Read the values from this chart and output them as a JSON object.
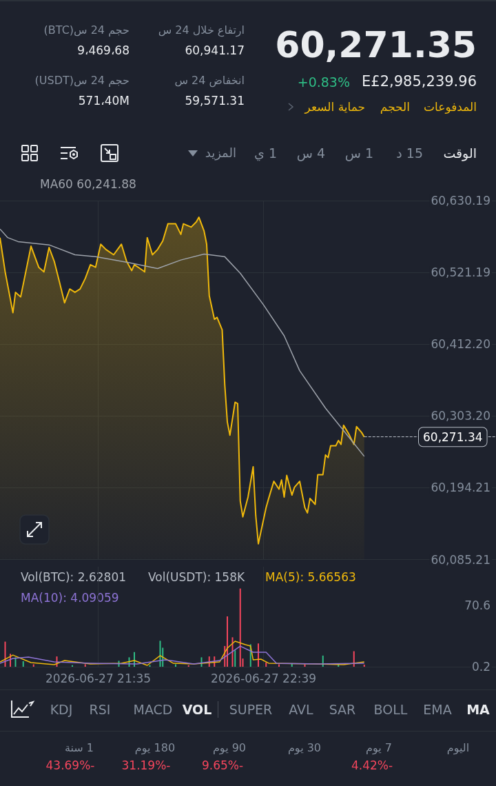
{
  "chart_data": [
    {
      "type": "other",
      "annotations": [
        "60,271.35",
        "E£2,985,239.96",
        "+0.83%",
        "المدفوعات",
        "الحجم",
        "حماية السعر",
        "ارتفاع خلال 24 س",
        "60,941.17",
        "انخفاض 24 س",
        "59,571.31",
        "حجم 24 س(BTC)",
        "9،469،68",
        "حجم 24 س(USDT)",
        "571،40M",
        "الوقت",
        "15 د",
        "1 س",
        "4 س",
        "1 ي",
        "المزيد"
      ]
    },
    {
      "type": "area",
      "xlim": [
        "2026-06-27T20:57",
        "2026-06-28T00:09"
      ],
      "xticks": [
        {
          "value": "2026-06-27T21:35",
          "label": null
        },
        {
          "value": "2026-06-27T22:39",
          "label": null
        }
      ],
      "ylim": [
        60085.21,
        60630.19
      ],
      "yticks": [
        {
          "value": 60085.21,
          "label": "60,085.21"
        },
        {
          "value": 60194.21,
          "label": "60,194.21"
        },
        {
          "value": 60303.2,
          "label": "60,303.20"
        },
        {
          "value": 60412.2,
          "label": "60,412.20"
        },
        {
          "value": 60521.19,
          "label": "60,521.19"
        },
        {
          "value": 60630.19,
          "label": "60,630.19"
        }
      ],
      "tick_labels": "y",
      "grid": true,
      "ref_lines": [
        {
          "axis": "y",
          "value": 60271.34,
          "label": "60,271.34",
          "line_style": "dashed",
          "color": "#b7bdc6"
        }
      ],
      "series": [
        {
          "type": "area",
          "color": "#f0b90b",
          "x": [
            "2026-06-27T20:57",
            "2026-06-27T20:59",
            "2026-06-27T21:02",
            "2026-06-27T21:03",
            "2026-06-27T21:05",
            "2026-06-27T21:09",
            "2026-06-27T21:12",
            "2026-06-27T21:14",
            "2026-06-27T21:16",
            "2026-06-27T21:18",
            "2026-06-27T21:20",
            "2026-06-27T21:22",
            "2026-06-27T21:24",
            "2026-06-27T21:26",
            "2026-06-27T21:28",
            "2026-06-27T21:30",
            "2026-06-27T21:32",
            "2026-06-27T21:34",
            "2026-06-27T21:36",
            "2026-06-27T21:38",
            "2026-06-27T21:41",
            "2026-06-27T21:44",
            "2026-06-27T21:46",
            "2026-06-27T21:48",
            "2026-06-27T21:49",
            "2026-06-27T21:52",
            "2026-06-27T21:53",
            "2026-06-27T21:54",
            "2026-06-27T21:56",
            "2026-06-27T21:58",
            "2026-06-27T22:00",
            "2026-06-27T22:02",
            "2026-06-27T22:05",
            "2026-06-27T22:07",
            "2026-06-27T22:08",
            "2026-06-27T22:11",
            "2026-06-27T22:13",
            "2026-06-27T22:14",
            "2026-06-27T22:16",
            "2026-06-27T22:17",
            "2026-06-27T22:18",
            "2026-06-27T22:20",
            "2026-06-27T22:21",
            "2026-06-27T22:23",
            "2026-06-27T22:24",
            "2026-06-27T22:25",
            "2026-06-27T22:26",
            "2026-06-27T22:28",
            "2026-06-27T22:29",
            "2026-06-27T22:30",
            "2026-06-27T22:31",
            "2026-06-27T22:33",
            "2026-06-27T22:35",
            "2026-06-27T22:36",
            "2026-06-27T22:37",
            "2026-06-27T22:40",
            "2026-06-27T22:41",
            "2026-06-27T22:43",
            "2026-06-27T22:45",
            "2026-06-27T22:46",
            "2026-06-27T22:47",
            "2026-06-27T22:48",
            "2026-06-27T22:50",
            "2026-06-27T22:51",
            "2026-06-27T22:53",
            "2026-06-27T22:55",
            "2026-06-27T22:56",
            "2026-06-27T22:57",
            "2026-06-27T22:59",
            "2026-06-27T23:00",
            "2026-06-27T23:02",
            "2026-06-27T23:03",
            "2026-06-27T23:04",
            "2026-06-27T23:05",
            "2026-06-27T23:07",
            "2026-06-27T23:08",
            "2026-06-27T23:09",
            "2026-06-27T23:10",
            "2026-06-27T23:12",
            "2026-06-27T23:13",
            "2026-06-27T23:14",
            "2026-06-27T23:15",
            "2026-06-27T23:17",
            "2026-06-27T23:18"
          ],
          "values": [
            60574,
            60522,
            60460,
            60491,
            60484,
            60561,
            60529,
            60522,
            60559,
            60538,
            60507,
            60475,
            60496,
            60491,
            60496,
            60512,
            60533,
            60529,
            60564,
            60556,
            60548,
            60564,
            60538,
            60524,
            60533,
            60525,
            60522,
            60574,
            60548,
            60556,
            60569,
            60595,
            60595,
            60579,
            60595,
            60590,
            60598,
            60605,
            60584,
            60564,
            60486,
            60450,
            60453,
            60434,
            60351,
            60294,
            60274,
            60324,
            60322,
            60174,
            60150,
            60180,
            60226,
            60152,
            60109,
            60164,
            60178,
            60204,
            60192,
            60206,
            60180,
            60213,
            60183,
            60195,
            60204,
            60164,
            60156,
            60178,
            60169,
            60214,
            60214,
            60244,
            60240,
            60258,
            60258,
            60266,
            60260,
            60289,
            60276,
            60268,
            60260,
            60287,
            60278,
            60271.34
          ]
        },
        {
          "type": "line",
          "name": "MA60 60,241.88",
          "color": "#9ea3ab",
          "x": [
            "2026-06-27T20:57",
            "2026-06-27T21:00",
            "2026-06-27T21:04",
            "2026-06-27T21:16",
            "2026-06-27T21:26",
            "2026-06-27T21:34",
            "2026-06-27T21:47",
            "2026-06-27T21:58",
            "2026-06-27T22:07",
            "2026-06-27T22:16",
            "2026-06-27T22:24",
            "2026-06-27T22:30",
            "2026-06-27T22:39",
            "2026-06-27T22:47",
            "2026-06-27T22:53",
            "2026-06-27T23:03",
            "2026-06-27T23:10",
            "2026-06-27T23:18"
          ],
          "values": [
            60587,
            60574,
            60568,
            60563,
            60548,
            60545,
            60536,
            60527,
            60540,
            60549,
            60545,
            60520,
            60472,
            60425,
            60372,
            60315,
            60281,
            60241.88
          ]
        }
      ]
    },
    {
      "type": "bar",
      "xlim": [
        "2026-06-27T20:57",
        "2026-06-28T00:09"
      ],
      "xticks": [
        {
          "value": "2026-06-27T21:35",
          "label": "2026-06-27 21:35"
        },
        {
          "value": "2026-06-27T22:39",
          "label": "2026-06-27 22:39"
        }
      ],
      "ylim": [
        0.2,
        115
      ],
      "yticks": [
        0.2,
        70.6
      ],
      "grid": "x",
      "annotations": [
        "Vol(BTC): 2.62801",
        "Vol(USDT): 158K"
      ],
      "series": [
        {
          "type": "bar",
          "x": [
            "2026-06-27T20:59",
            "2026-06-27T21:01",
            "2026-06-27T21:03",
            "2026-06-27T21:06",
            "2026-06-27T21:10",
            "2026-06-27T21:19",
            "2026-06-27T21:25",
            "2026-06-27T21:30",
            "2026-06-27T21:43",
            "2026-06-27T21:47",
            "2026-06-27T21:49",
            "2026-06-27T21:55",
            "2026-06-27T21:59",
            "2026-06-27T22:00",
            "2026-06-27T22:05",
            "2026-06-27T22:10",
            "2026-06-27T22:15",
            "2026-06-27T22:18",
            "2026-06-27T22:20",
            "2026-06-27T22:24",
            "2026-06-27T22:25",
            "2026-06-27T22:27",
            "2026-06-27T22:28",
            "2026-06-27T22:30",
            "2026-06-27T22:31",
            "2026-06-27T22:34",
            "2026-06-27T22:37",
            "2026-06-27T22:40",
            "2026-06-27T22:45",
            "2026-06-27T22:50",
            "2026-06-27T22:55",
            "2026-06-27T23:02",
            "2026-06-27T23:08",
            "2026-06-27T23:14",
            "2026-06-27T23:18"
          ],
          "values": [
            29,
            15,
            11,
            6.5,
            3,
            12,
            2,
            3,
            7,
            11,
            17,
            2,
            30,
            22,
            3,
            2,
            11,
            12,
            12,
            24,
            58,
            34,
            19,
            90,
            9.6,
            26,
            27,
            5,
            3,
            4,
            3,
            13,
            3,
            18,
            2.6
          ],
          "colors": [
            "#f6465d",
            "#f6465d",
            "#2ebd85",
            "#2ebd85",
            "#f6465d",
            "#f6465d",
            "#2ebd85",
            "#f6465d",
            "#2ebd85",
            "#2ebd85",
            "#2ebd85",
            "#2ebd85",
            "#2ebd85",
            "#2ebd85",
            "#2ebd85",
            "#f6465d",
            "#2ebd85",
            "#f6465d",
            "#f6465d",
            "#f6465d",
            "#f6465d",
            "#f6465d",
            "#2ebd85",
            "#f6465d",
            "#f6465d",
            "#2ebd85",
            "#f6465d",
            "#f6465d",
            "#f6465d",
            "#2ebd85",
            "#f6465d",
            "#2ebd85",
            "#2ebd85",
            "#f6465d",
            "#f6465d"
          ]
        },
        {
          "type": "line",
          "name": "MA(5): 5.66563",
          "color": "#f0b90b",
          "x": [
            "2026-06-27T20:57",
            "2026-06-27T21:02",
            "2026-06-27T21:09",
            "2026-06-27T21:18",
            "2026-06-27T21:22",
            "2026-06-27T21:32",
            "2026-06-27T21:44",
            "2026-06-27T21:49",
            "2026-06-27T21:54",
            "2026-06-27T21:59",
            "2026-06-27T22:04",
            "2026-06-27T22:12",
            "2026-06-27T22:22",
            "2026-06-27T22:25",
            "2026-06-27T22:28",
            "2026-06-27T22:32",
            "2026-06-27T22:34",
            "2026-06-27T22:35",
            "2026-06-27T22:38",
            "2026-06-27T22:41",
            "2026-06-27T23:00",
            "2026-06-27T23:10",
            "2026-06-27T23:18"
          ],
          "values": [
            5.7,
            13.6,
            4.9,
            2.6,
            7.3,
            3.4,
            4.2,
            7.3,
            1.8,
            12.9,
            4.2,
            3.4,
            5.7,
            21.6,
            29.5,
            25.5,
            23.9,
            8.1,
            8.9,
            4.2,
            3.4,
            2.6,
            5.66563
          ]
        },
        {
          "type": "line",
          "name": "MA(10): 4.09059",
          "color": "#8e74d6",
          "x": [
            "2026-06-27T20:57",
            "2026-06-27T21:02",
            "2026-06-27T21:08",
            "2026-06-27T21:18",
            "2026-06-27T21:32",
            "2026-06-27T21:50",
            "2026-06-27T22:01",
            "2026-06-27T22:12",
            "2026-06-27T22:22",
            "2026-06-27T22:30",
            "2026-06-27T22:35",
            "2026-06-27T22:40",
            "2026-06-27T22:44",
            "2026-06-27T23:00",
            "2026-06-27T23:18"
          ],
          "values": [
            4.2,
            9.7,
            11.3,
            5.7,
            4.2,
            3.4,
            8.1,
            3.4,
            7.3,
            23.9,
            16.8,
            16.8,
            4.2,
            3.4,
            4.09059
          ]
        }
      ]
    },
    {
      "type": "other",
      "annotations": [
        "KDJ",
        "RSI",
        "MACD",
        "VOL",
        "SUPER",
        "AVL",
        "SAR",
        "BOLL",
        "EMA",
        "MA",
        "1 سنة",
        "180 يوم",
        "90 يوم",
        "30 يوم",
        "7 يوم",
        "اليوم",
        "43.69%-",
        "31.19%-",
        "9.65%-",
        "4.42%-"
      ]
    }
  ]
}
